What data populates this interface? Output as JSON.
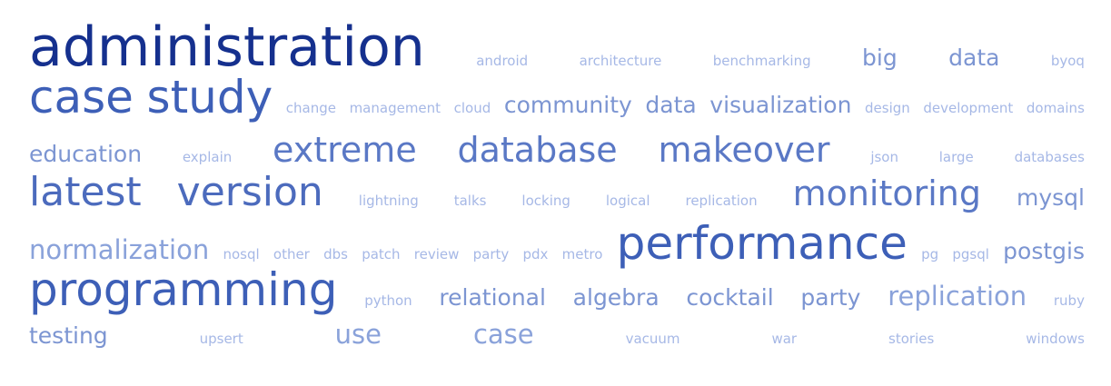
{
  "cloud": {
    "lines": [
      [
        {
          "text": "administration",
          "weight": 10
        },
        {
          "text": "android",
          "weight": 1
        },
        {
          "text": "architecture",
          "weight": 1
        },
        {
          "text": "benchmarking",
          "weight": 1
        },
        {
          "text": "big",
          "weight": 3
        },
        {
          "text": "data",
          "weight": 3
        },
        {
          "text": "byoq",
          "weight": 1
        }
      ],
      [
        {
          "text": "case",
          "weight": 8
        },
        {
          "text": "study",
          "weight": 8
        },
        {
          "text": "change",
          "weight": 1
        },
        {
          "text": "management",
          "weight": 1
        },
        {
          "text": "cloud",
          "weight": 1
        },
        {
          "text": "community",
          "weight": 3
        },
        {
          "text": "data",
          "weight": 3
        },
        {
          "text": "visualization",
          "weight": 3
        },
        {
          "text": "design",
          "weight": 1
        },
        {
          "text": "development",
          "weight": 1
        },
        {
          "text": "domains",
          "weight": 1
        }
      ],
      [
        {
          "text": "education",
          "weight": 3
        },
        {
          "text": "explain",
          "weight": 1
        },
        {
          "text": "extreme",
          "weight": 6
        },
        {
          "text": "database",
          "weight": 6
        },
        {
          "text": "makeover",
          "weight": 6
        },
        {
          "text": "json",
          "weight": 1
        },
        {
          "text": "large",
          "weight": 1
        },
        {
          "text": "databases",
          "weight": 1
        }
      ],
      [
        {
          "text": "latest",
          "weight": 7
        },
        {
          "text": "version",
          "weight": 7
        },
        {
          "text": "lightning",
          "weight": 1
        },
        {
          "text": "talks",
          "weight": 1
        },
        {
          "text": "locking",
          "weight": 1
        },
        {
          "text": "logical",
          "weight": 1
        },
        {
          "text": "replication",
          "weight": 1
        },
        {
          "text": "monitoring",
          "weight": 6
        },
        {
          "text": "mysql",
          "weight": 3
        }
      ],
      [
        {
          "text": "normalization",
          "weight": 4
        },
        {
          "text": "nosql",
          "weight": 1
        },
        {
          "text": "other",
          "weight": 1
        },
        {
          "text": "dbs",
          "weight": 1
        },
        {
          "text": "patch",
          "weight": 1
        },
        {
          "text": "review",
          "weight": 1
        },
        {
          "text": "party",
          "weight": 1
        },
        {
          "text": "pdx",
          "weight": 1
        },
        {
          "text": "metro",
          "weight": 1
        },
        {
          "text": "performance",
          "weight": 8
        },
        {
          "text": "pg",
          "weight": 1
        },
        {
          "text": "pgsql",
          "weight": 1
        },
        {
          "text": "postgis",
          "weight": 3
        }
      ],
      [
        {
          "text": "programming",
          "weight": 8
        },
        {
          "text": "python",
          "weight": 1
        },
        {
          "text": "relational",
          "weight": 3
        },
        {
          "text": "algebra",
          "weight": 3
        },
        {
          "text": "cocktail",
          "weight": 3
        },
        {
          "text": "party",
          "weight": 3
        },
        {
          "text": "replication",
          "weight": 4
        },
        {
          "text": "ruby",
          "weight": 1
        }
      ],
      [
        {
          "text": "testing",
          "weight": 3
        },
        {
          "text": "upsert",
          "weight": 1
        },
        {
          "text": "use",
          "weight": 4
        },
        {
          "text": "case",
          "weight": 4
        },
        {
          "text": "vacuum",
          "weight": 1
        },
        {
          "text": "war",
          "weight": 1
        },
        {
          "text": "stories",
          "weight": 1
        },
        {
          "text": "windows",
          "weight": 1
        }
      ]
    ]
  },
  "colors": {
    "weight_1": "#a6b8e6",
    "weight_3": "#7c95d2",
    "weight_4": "#8aa2da",
    "weight_6": "#5a78c5",
    "weight_7": "#4c6bbd",
    "weight_8": "#3d5fb7",
    "weight_10": "#15308e"
  }
}
